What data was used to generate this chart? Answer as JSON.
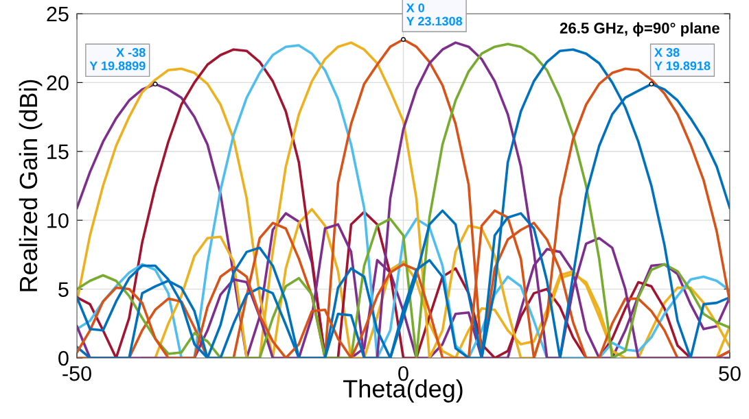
{
  "chart_data": {
    "type": "line",
    "title": "26.5 GHz, ϕ=90° plane",
    "xlabel": "Theta(deg)",
    "ylabel": "Realized Gain (dBi)",
    "x": [
      -50,
      -48,
      -46,
      -44,
      -42,
      -40,
      -38,
      -36,
      -34,
      -32,
      -30,
      -28,
      -26,
      -24,
      -22,
      -20,
      -18,
      -16,
      -14,
      -12,
      -10,
      -8,
      -6,
      -4,
      -2,
      0,
      2,
      4,
      6,
      8,
      10,
      12,
      14,
      16,
      18,
      20,
      22,
      24,
      26,
      28,
      30,
      32,
      34,
      36,
      38,
      40,
      42,
      44,
      46,
      48,
      50
    ],
    "xlim": [
      -50,
      50
    ],
    "xticks": [
      -50,
      0,
      50
    ],
    "ylim": [
      0,
      25
    ],
    "yticks": [
      0,
      5,
      10,
      15,
      20,
      25
    ],
    "grid": true,
    "line_style": "solid",
    "series": [
      {
        "color": "#7e2f8e",
        "values": [
          10.9,
          13.5,
          15.7,
          17.4,
          18.7,
          19.5,
          19.8899,
          19.5,
          18.9,
          17.5,
          15.5,
          11.9,
          6.0,
          0,
          3,
          9.3,
          10.5,
          9.9,
          6.9,
          0,
          0,
          0,
          0.7,
          7.1,
          6.2,
          3.4,
          0,
          0,
          1,
          3.2,
          3.3,
          0,
          0,
          0,
          3.5,
          6.7,
          7.9,
          7.7,
          6.3,
          2,
          0,
          0,
          2,
          4.5,
          6.7,
          6.8,
          6.1,
          3.9,
          2.1,
          2.3,
          4.4
        ]
      },
      {
        "color": "#edb120",
        "values": [
          4.1,
          8.9,
          12.5,
          15.4,
          17.5,
          19.3,
          20.2,
          20.9,
          21.0,
          20.7,
          19.9,
          18.4,
          15.9,
          11.6,
          4.5,
          0,
          6.5,
          9.8,
          10.8,
          9.6,
          6.3,
          0,
          0,
          3,
          6.4,
          7.0,
          5.6,
          2.5,
          0.5,
          0,
          2,
          3.6,
          3.5,
          2,
          1,
          1.2,
          3.5,
          6.0,
          6.3,
          5.3,
          3,
          0.5,
          0,
          0,
          2,
          4.0,
          5.1,
          5.1,
          4.0,
          2.5,
          0.8
        ]
      },
      {
        "color": "#a2142f",
        "values": [
          4.4,
          3.9,
          2,
          0,
          2.9,
          8.4,
          12.4,
          15.7,
          18.4,
          20.0,
          21.3,
          22.0,
          22.4,
          22.3,
          21.5,
          20.1,
          17.9,
          14.2,
          7.2,
          0,
          0,
          9.7,
          10.6,
          9.7,
          6.1,
          0,
          0,
          3,
          5.9,
          6.5,
          4.7,
          1,
          0,
          0.5,
          3,
          4.7,
          5.0,
          3.7,
          1.5,
          0,
          0,
          1.4,
          3.6,
          5.5,
          5.2,
          3.6,
          0.9,
          0,
          0,
          0,
          0.5
        ]
      },
      {
        "color": "#4dbeee",
        "values": [
          2.1,
          2.7,
          4.1,
          5.2,
          6.2,
          6.8,
          6.4,
          4.7,
          0,
          0,
          6.9,
          12.2,
          16.2,
          18.9,
          20.7,
          22.0,
          22.6,
          22.7,
          22.1,
          20.9,
          18.8,
          15.5,
          10.9,
          0,
          2,
          8.6,
          10.1,
          9.5,
          6.7,
          0.9,
          0,
          2,
          4.6,
          5.9,
          5.2,
          2.7,
          0,
          0,
          0,
          0,
          0,
          1.1,
          0.6,
          0.5,
          1.5,
          3.2,
          4.5,
          5.7,
          5.9,
          5.6,
          4.9
        ]
      },
      {
        "color": "#edb120",
        "values": [
          null,
          null,
          null,
          null,
          null,
          0,
          0,
          2.5,
          4.5,
          7.4,
          8.7,
          8.8,
          7.0,
          0,
          0,
          7.7,
          13.9,
          17.7,
          20.1,
          21.7,
          22.6,
          22.9,
          22.4,
          21.4,
          19.4,
          17.2,
          11.6,
          0,
          2,
          7.7,
          9.6,
          9.4,
          7.4,
          3.4,
          0,
          0,
          3,
          5.8,
          6.1,
          5.5,
          3.5,
          0.5,
          0,
          0,
          0,
          0,
          0,
          0,
          0,
          0,
          2.3
        ]
      },
      {
        "color": "#d95319",
        "values": [
          0,
          0,
          0,
          0,
          0,
          2.0,
          3.5,
          4.3,
          4.1,
          2.2,
          0,
          0,
          0,
          4.5,
          8.7,
          9.8,
          9.4,
          7.2,
          4.5,
          0,
          12.7,
          17.0,
          19.9,
          21.3,
          22.6,
          23.1308,
          22.6,
          21.5,
          19.8,
          17.0,
          12.6,
          0,
          6.5,
          8.6,
          9.3,
          9.8,
          8.6,
          6.4,
          2.6,
          0,
          0,
          2.5,
          4.3,
          4.3,
          3.4,
          2.0,
          0,
          0,
          0,
          0,
          0.5
        ]
      },
      {
        "color": "#7e2f8e",
        "values": [
          2.3,
          0,
          0,
          0,
          0,
          0,
          0,
          0,
          0,
          0,
          2,
          4.6,
          5.7,
          5.5,
          3,
          0,
          0,
          0,
          3,
          9.4,
          9.7,
          7.7,
          0,
          0,
          11.6,
          16.6,
          19.5,
          21.4,
          22.4,
          22.9,
          22.6,
          21.7,
          20.1,
          17.7,
          13.9,
          7.7,
          0,
          0,
          5,
          8.3,
          8.7,
          8.0,
          5.0,
          0,
          0,
          0,
          0,
          0,
          0,
          0,
          0
        ]
      },
      {
        "color": "#77ac30",
        "values": [
          5.0,
          5.6,
          6.0,
          5.6,
          4.5,
          2.9,
          1.4,
          0.3,
          0.4,
          1.8,
          1.2,
          0,
          0,
          0,
          0,
          2.9,
          5.2,
          5.8,
          4.6,
          0,
          0,
          0,
          6.7,
          9.6,
          10.1,
          8.9,
          0,
          10.2,
          15.5,
          18.7,
          20.8,
          22.1,
          22.6,
          22.8,
          22.6,
          22.0,
          20.9,
          18.9,
          16.2,
          12.5,
          7.2,
          0,
          0.5,
          4.4,
          6.4,
          6.8,
          6.3,
          4.9,
          3.2,
          2.6,
          2.2
        ]
      },
      {
        "color": "#0072bd",
        "values": [
          0.8,
          0,
          0,
          0,
          0,
          4.7,
          5.2,
          5.6,
          5.1,
          3.4,
          0,
          0,
          2.5,
          4.6,
          5.1,
          4.7,
          2.4,
          0,
          0,
          0,
          5.1,
          6.5,
          5.9,
          2,
          0,
          3,
          6,
          9.7,
          10.7,
          9.7,
          4.6,
          0,
          5,
          14.2,
          17.9,
          20.1,
          21.5,
          22.3,
          22.4,
          22.1,
          21.4,
          20.0,
          18.2,
          15.7,
          12.5,
          8.2,
          2.7,
          0,
          3.9,
          4.0,
          4.4
        ]
      },
      {
        "color": "#d95319",
        "values": [
          0.4,
          2,
          4.1,
          5.1,
          5.0,
          4.0,
          1.4,
          0,
          0,
          0,
          3.7,
          5.9,
          6.6,
          5.9,
          3.1,
          1.2,
          0,
          1,
          3.4,
          3.5,
          1.4,
          0,
          2,
          4.5,
          6.2,
          6.8,
          6.4,
          3.4,
          0,
          0,
          0,
          9.6,
          10.7,
          10.2,
          7.2,
          0,
          3,
          11.6,
          15.9,
          18.4,
          19.9,
          20.7,
          21.0,
          20.9,
          20.2,
          19.2,
          17.7,
          15.5,
          12.9,
          9.2,
          4.1
        ]
      },
      {
        "color": "#0072bd",
        "values": [
          4.4,
          2.1,
          2.0,
          4.1,
          5.8,
          6.7,
          6.7,
          5.7,
          4.0,
          1,
          0,
          2.4,
          6.2,
          7.7,
          8.0,
          6.7,
          4.1,
          0,
          0,
          0,
          3.2,
          3.1,
          0,
          0,
          0,
          3.5,
          6.4,
          7.1,
          5.9,
          0.7,
          0,
          0,
          8.9,
          10.2,
          10.5,
          9.4,
          5.6,
          0,
          6,
          11.9,
          15.4,
          17.7,
          18.9,
          19.4,
          19.8918,
          19.5,
          18.7,
          17.4,
          15.9,
          13.9,
          10.9
        ]
      }
    ],
    "annotations": [
      {
        "text": "X -38\nY 19.8899",
        "x": -38,
        "y": 19.8899
      },
      {
        "text": "X 0\nY 23.1308",
        "x": 0,
        "y": 23.1308
      },
      {
        "text": "X 38\nY 19.8918",
        "x": 38,
        "y": 19.8918
      }
    ]
  }
}
